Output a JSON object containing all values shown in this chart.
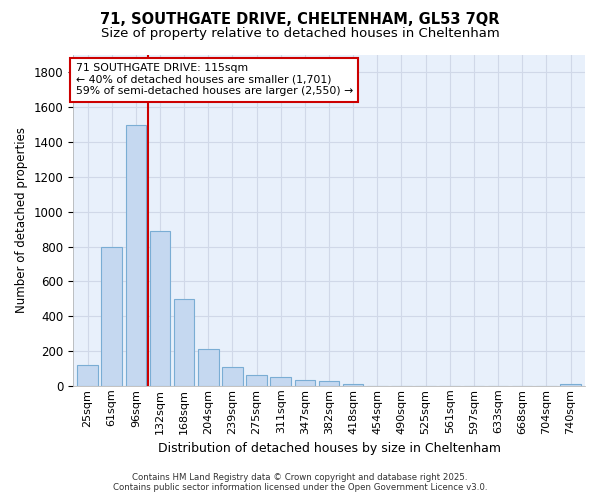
{
  "title_line1": "71, SOUTHGATE DRIVE, CHELTENHAM, GL53 7QR",
  "title_line2": "Size of property relative to detached houses in Cheltenham",
  "xlabel": "Distribution of detached houses by size in Cheltenham",
  "ylabel": "Number of detached properties",
  "categories": [
    "25sqm",
    "61sqm",
    "96sqm",
    "132sqm",
    "168sqm",
    "204sqm",
    "239sqm",
    "275sqm",
    "311sqm",
    "347sqm",
    "382sqm",
    "418sqm",
    "454sqm",
    "490sqm",
    "525sqm",
    "561sqm",
    "597sqm",
    "633sqm",
    "668sqm",
    "704sqm",
    "740sqm"
  ],
  "values": [
    120,
    800,
    1500,
    890,
    500,
    210,
    110,
    65,
    50,
    35,
    27,
    10,
    0,
    0,
    0,
    0,
    0,
    0,
    0,
    0,
    8
  ],
  "bar_color": "#c5d8f0",
  "bar_edge_color": "#7aadd4",
  "plot_bg_color": "#e8f0fb",
  "figure_bg_color": "#ffffff",
  "grid_color": "#d0d8e8",
  "annotation_text": "71 SOUTHGATE DRIVE: 115sqm\n← 40% of detached houses are smaller (1,701)\n59% of semi-detached houses are larger (2,550) →",
  "annotation_box_color": "#ffffff",
  "annotation_box_edge": "#cc0000",
  "vline_color": "#cc0000",
  "vline_x": 2.5,
  "ylim": [
    0,
    1900
  ],
  "yticks": [
    0,
    200,
    400,
    600,
    800,
    1000,
    1200,
    1400,
    1600,
    1800
  ],
  "footer_line1": "Contains HM Land Registry data © Crown copyright and database right 2025.",
  "footer_line2": "Contains public sector information licensed under the Open Government Licence v3.0."
}
